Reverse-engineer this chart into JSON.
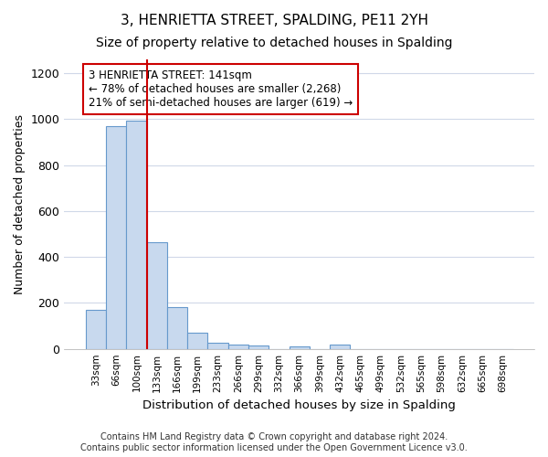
{
  "title": "3, HENRIETTA STREET, SPALDING, PE11 2YH",
  "subtitle": "Size of property relative to detached houses in Spalding",
  "xlabel": "Distribution of detached houses by size in Spalding",
  "ylabel": "Number of detached properties",
  "categories": [
    "33sqm",
    "66sqm",
    "100sqm",
    "133sqm",
    "166sqm",
    "199sqm",
    "233sqm",
    "266sqm",
    "299sqm",
    "332sqm",
    "366sqm",
    "399sqm",
    "432sqm",
    "465sqm",
    "499sqm",
    "532sqm",
    "565sqm",
    "598sqm",
    "632sqm",
    "665sqm",
    "698sqm"
  ],
  "values": [
    170,
    968,
    995,
    465,
    183,
    72,
    27,
    19,
    13,
    0,
    11,
    0,
    18,
    0,
    0,
    0,
    0,
    0,
    0,
    0,
    0
  ],
  "bar_color": "#c8d9ee",
  "bar_edge_color": "#6699cc",
  "property_line_color": "#cc0000",
  "annotation_text": "3 HENRIETTA STREET: 141sqm\n← 78% of detached houses are smaller (2,268)\n21% of semi-detached houses are larger (619) →",
  "annotation_box_color": "#ffffff",
  "annotation_box_edge": "#cc0000",
  "ylim": [
    0,
    1260
  ],
  "yticks": [
    0,
    200,
    400,
    600,
    800,
    1000,
    1200
  ],
  "footnote": "Contains HM Land Registry data © Crown copyright and database right 2024.\nContains public sector information licensed under the Open Government Licence v3.0.",
  "bg_color": "#ffffff",
  "plot_bg_color": "#ffffff",
  "grid_color": "#d0d8e8",
  "title_fontsize": 11,
  "subtitle_fontsize": 10,
  "xlabel_fontsize": 9.5,
  "ylabel_fontsize": 9,
  "footnote_fontsize": 7
}
